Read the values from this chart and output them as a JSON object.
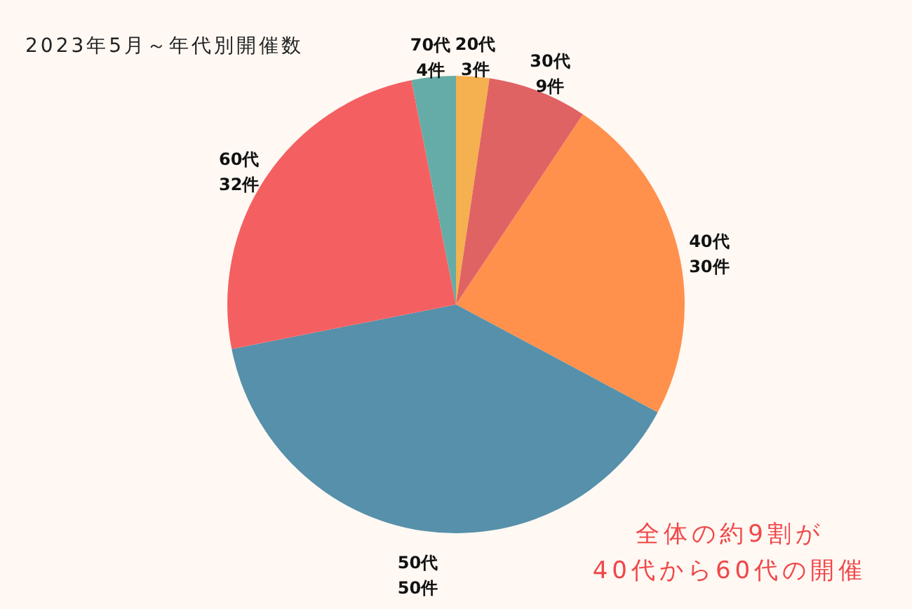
{
  "chart_data": {
    "type": "pie",
    "title": "2023年5月～年代別開催数",
    "categories": [
      "20代",
      "30代",
      "40代",
      "50代",
      "60代",
      "70代"
    ],
    "values": [
      3,
      9,
      30,
      50,
      32,
      4
    ],
    "value_labels": [
      "3件",
      "9件",
      "30件",
      "50件",
      "32件",
      "4件"
    ],
    "colors": [
      "#f5b04f",
      "#e06363",
      "#ff914d",
      "#5690aa",
      "#f46062",
      "#65aca8"
    ],
    "annotations": [
      "全体の約9割が",
      "40代から60代の開催"
    ]
  }
}
